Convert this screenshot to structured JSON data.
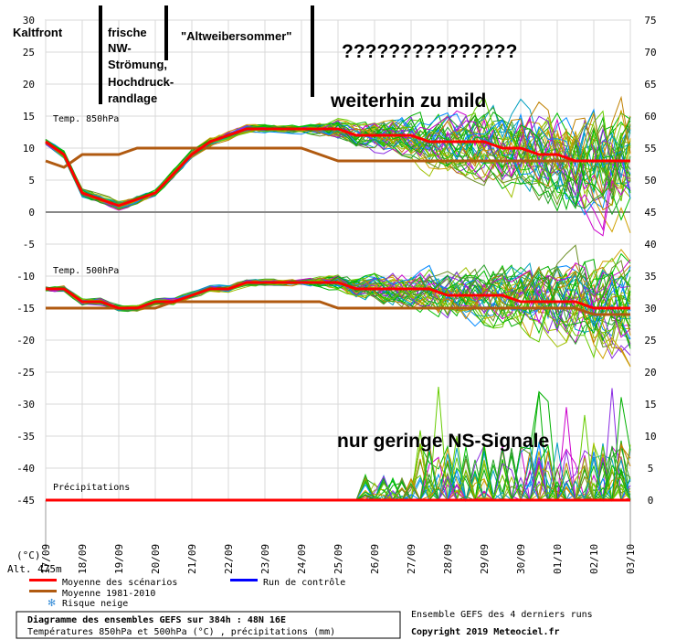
{
  "chart_data": {
    "type": "line",
    "title": "Diagramme des ensembles GEFS sur 384h : 48N 16E",
    "subtitle": "Températures 850hPa et 500hPa (°C) , précipitations (mm)",
    "y_left_ticks": [
      "30",
      "25",
      "20",
      "15",
      "10",
      "5",
      "0",
      "-5",
      "-10",
      "-15",
      "-20",
      "-25",
      "-30",
      "-35",
      "-40",
      "-45"
    ],
    "y_right_ticks": [
      "75",
      "70",
      "65",
      "60",
      "55",
      "50",
      "45",
      "40",
      "35",
      "30",
      "25",
      "20",
      "15",
      "10",
      "5",
      "0"
    ],
    "x_ticks": [
      "17/09",
      "18/09",
      "19/09",
      "20/09",
      "21/09",
      "22/09",
      "23/09",
      "24/09",
      "25/09",
      "26/09",
      "27/09",
      "28/09",
      "29/09",
      "30/09",
      "01/10",
      "02/10",
      "03/10"
    ],
    "unit_label": "(°C)",
    "altitude_label": "Alt. 475m",
    "panel_labels": {
      "t850": "Temp. 850hPa",
      "t500": "Temp. 500hPa",
      "precip": "Précipitations"
    },
    "series": {
      "t850_mean": {
        "name": "Moyenne des scénarios",
        "days": [
          0,
          0.5,
          1,
          1.5,
          2,
          2.5,
          3,
          3.5,
          4,
          4.5,
          5,
          5.5,
          6,
          6.5,
          7,
          7.5,
          8,
          8.5,
          9,
          9.5,
          10,
          10.5,
          11,
          11.5,
          12,
          12.5,
          13,
          13.5,
          14,
          14.5,
          15,
          15.5,
          16
        ],
        "values": [
          11,
          9,
          3,
          2,
          1,
          2,
          3,
          6,
          9,
          11,
          12,
          13,
          13,
          13,
          13,
          13,
          13,
          12,
          12,
          12,
          12,
          11,
          11,
          11,
          11,
          10,
          10,
          9,
          9,
          8,
          8,
          8,
          8
        ]
      },
      "t850_clim": {
        "name": "Moyenne 1981-2010",
        "days": [
          0,
          0.5,
          1,
          1.5,
          2,
          2.5,
          3,
          3.5,
          4,
          4.5,
          5,
          5.5,
          6,
          6.5,
          7,
          7.5,
          8,
          8.5,
          9,
          9.5,
          10,
          10.5,
          11,
          11.5,
          12,
          12.5,
          13,
          13.5,
          14,
          14.5,
          15,
          15.5,
          16
        ],
        "values": [
          8,
          7,
          9,
          9,
          9,
          10,
          10,
          10,
          10,
          10,
          10,
          10,
          10,
          10,
          10,
          9,
          8,
          8,
          8,
          8,
          8,
          8,
          8,
          8,
          8,
          8,
          8,
          8,
          8,
          8,
          8,
          8,
          8
        ]
      },
      "t500_mean": {
        "name": "Moyenne des scénarios",
        "days": [
          0,
          0.5,
          1,
          1.5,
          2,
          2.5,
          3,
          3.5,
          4,
          4.5,
          5,
          5.5,
          6,
          6.5,
          7,
          7.5,
          8,
          8.5,
          9,
          9.5,
          10,
          10.5,
          11,
          11.5,
          12,
          12.5,
          13,
          13.5,
          14,
          14.5,
          15,
          15.5,
          16
        ],
        "values": [
          -12,
          -12,
          -14,
          -14,
          -15,
          -15,
          -14,
          -14,
          -13,
          -12,
          -12,
          -11,
          -11,
          -11,
          -11,
          -11,
          -11,
          -12,
          -12,
          -12,
          -12,
          -12,
          -13,
          -13,
          -13,
          -13,
          -14,
          -14,
          -14,
          -14,
          -15,
          -15,
          -15
        ]
      },
      "t500_clim": {
        "name": "Moyenne 1981-2010",
        "days": [
          0,
          0.5,
          1,
          1.5,
          2,
          2.5,
          3,
          3.5,
          4,
          4.5,
          5,
          5.5,
          6,
          6.5,
          7,
          7.5,
          8,
          8.5,
          9,
          9.5,
          10,
          10.5,
          11,
          11.5,
          12,
          12.5,
          13,
          13.5,
          14,
          14.5,
          15,
          15.5,
          16
        ],
        "values": [
          -15,
          -15,
          -15,
          -15,
          -15,
          -15,
          -15,
          -14,
          -14,
          -14,
          -14,
          -14,
          -14,
          -14,
          -14,
          -14,
          -15,
          -15,
          -15,
          -15,
          -15,
          -15,
          -15,
          -15,
          -15,
          -15,
          -15,
          -15,
          -15,
          -15,
          -16,
          -16,
          -16
        ]
      },
      "precip_mean": {
        "name": "Moyenne des scénarios",
        "days": [
          0,
          16
        ],
        "values": [
          0,
          0
        ]
      }
    },
    "legend": [
      {
        "label": "Moyenne des scénarios",
        "color": "#ff0000"
      },
      {
        "label": "Moyenne 1981-2010",
        "color": "#b05a10"
      },
      {
        "label": "Run de contrôle",
        "color": "#0000ff"
      },
      {
        "label": "Risque neige",
        "color": "#3a8fd8"
      }
    ],
    "source_text": "Ensemble GEFS des 4 derniers runs",
    "copyright": "Copyright 2019 Meteociel.fr"
  },
  "annotations": {
    "kaltfront": "Kaltfront",
    "nw_lines": [
      "frische",
      "NW-",
      "Strömung,",
      "Hochdruck-",
      "randlage"
    ],
    "altweiber": "\"Altweibersommer\"",
    "question": "???????????????",
    "mild": "weiterhin zu mild",
    "ns": "nur geringe NS-Signale"
  },
  "colors": {
    "mean": "#ff0000",
    "clim": "#b05a10",
    "control": "#0000ff",
    "grid": "#d0d0d0"
  }
}
